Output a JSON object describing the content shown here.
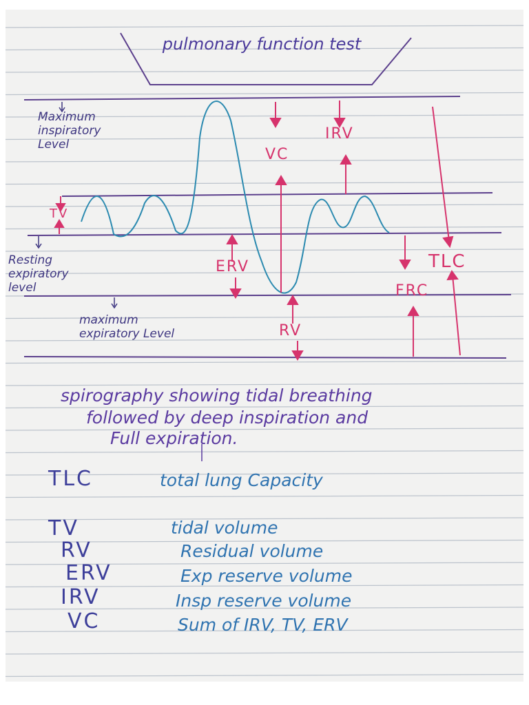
{
  "title": "pulmonary function test",
  "diagram": {
    "levels": [
      "Maximum inspiratory Level",
      "Resting expiratory level",
      "maximum expiratory Level"
    ],
    "volumes": [
      "TV",
      "IRV",
      "VC",
      "ERV",
      "RV",
      "TLC",
      "FRC"
    ]
  },
  "caption": [
    "spirography showing tidal breathing",
    "followed by deep inspiration and",
    "Full expiration."
  ],
  "glossary": [
    {
      "abbr": "TLC",
      "meaning": "total lung Capacity"
    },
    {
      "abbr": "TV",
      "meaning": "tidal volume"
    },
    {
      "abbr": "RV",
      "meaning": "Residual volume"
    },
    {
      "abbr": "ERV",
      "meaning": "Exp reserve volume"
    },
    {
      "abbr": "IRV",
      "meaning": "Insp reserve volume"
    },
    {
      "abbr": "VC",
      "meaning": "Sum of IRV, TV, ERV"
    }
  ]
}
